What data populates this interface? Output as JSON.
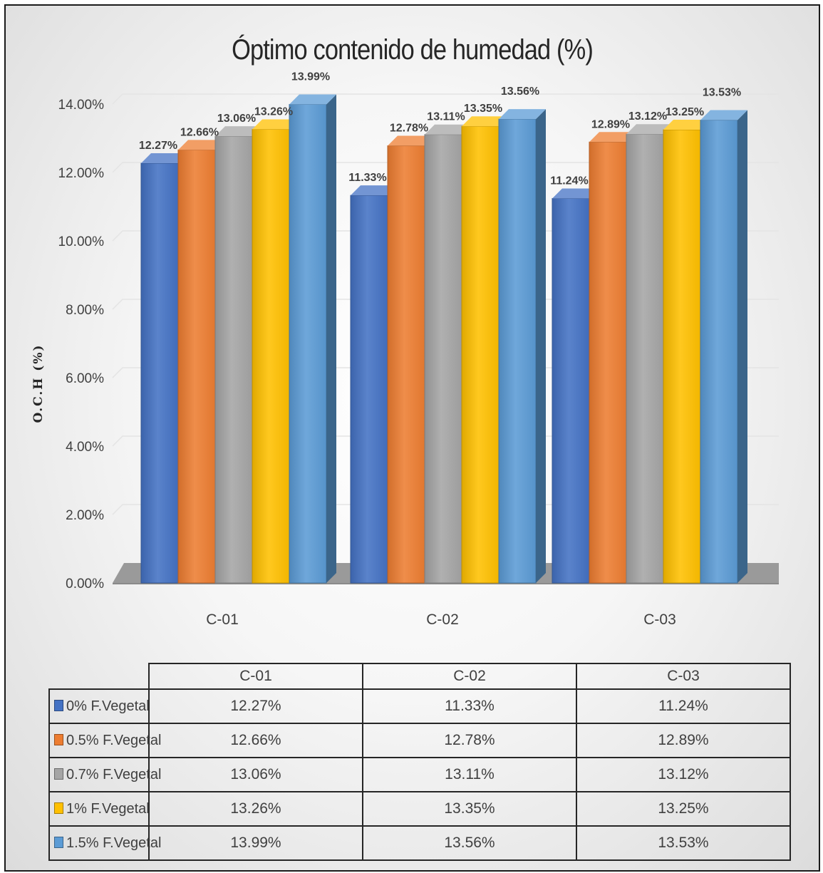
{
  "chart_data": {
    "type": "bar",
    "title": "Óptimo contenido de humedad (%)",
    "xlabel": "",
    "ylabel": "O.C.H (%)",
    "ylim": [
      0,
      14
    ],
    "ytick_values": [
      0,
      2,
      4,
      6,
      8,
      10,
      12,
      14
    ],
    "ytick_labels": [
      "0.00%",
      "2.00%",
      "4.00%",
      "6.00%",
      "8.00%",
      "10.00%",
      "12.00%",
      "14.00%"
    ],
    "grid": true,
    "legend": "data-table-below",
    "categories": [
      "C-01",
      "C-02",
      "C-03"
    ],
    "series": [
      {
        "name": "0% F.Vegetal",
        "color": "#4472C4",
        "values": [
          12.27,
          11.33,
          11.24
        ],
        "labels": [
          "12.27%",
          "11.33%",
          "11.24%"
        ]
      },
      {
        "name": "0.5% F.Vegetal",
        "color": "#ED7D31",
        "values": [
          12.66,
          12.78,
          12.89
        ],
        "labels": [
          "12.66%",
          "12.78%",
          "12.89%"
        ]
      },
      {
        "name": "0.7% F.Vegetal",
        "color": "#A5A5A5",
        "values": [
          13.06,
          13.11,
          13.12
        ],
        "labels": [
          "13.06%",
          "13.11%",
          "13.12%"
        ]
      },
      {
        "name": "1% F.Vegetal",
        "color": "#FFC000",
        "values": [
          13.26,
          13.35,
          13.25
        ],
        "labels": [
          "13.26%",
          "13.35%",
          "13.25%"
        ]
      },
      {
        "name": "1.5% F.Vegetal",
        "color": "#5B9BD5",
        "values": [
          13.99,
          13.56,
          13.53
        ],
        "labels": [
          "13.99%",
          "13.56%",
          "13.53%"
        ]
      }
    ]
  }
}
